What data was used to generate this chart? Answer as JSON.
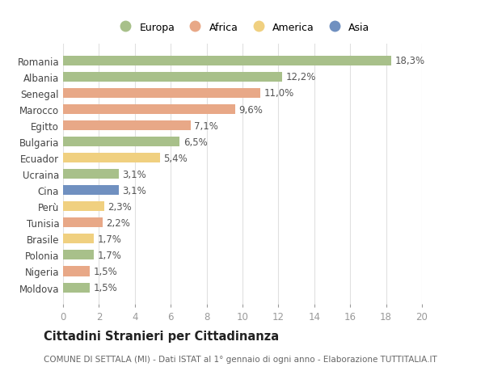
{
  "countries": [
    "Romania",
    "Albania",
    "Senegal",
    "Marocco",
    "Egitto",
    "Bulgaria",
    "Ecuador",
    "Ucraina",
    "Cina",
    "Perù",
    "Tunisia",
    "Brasile",
    "Polonia",
    "Nigeria",
    "Moldova"
  ],
  "values": [
    18.3,
    12.2,
    11.0,
    9.6,
    7.1,
    6.5,
    5.4,
    3.1,
    3.1,
    2.3,
    2.2,
    1.7,
    1.7,
    1.5,
    1.5
  ],
  "labels": [
    "18,3%",
    "12,2%",
    "11,0%",
    "9,6%",
    "7,1%",
    "6,5%",
    "5,4%",
    "3,1%",
    "3,1%",
    "2,3%",
    "2,2%",
    "1,7%",
    "1,7%",
    "1,5%",
    "1,5%"
  ],
  "continents": [
    "Europa",
    "Europa",
    "Africa",
    "Africa",
    "Africa",
    "Europa",
    "America",
    "Europa",
    "Asia",
    "America",
    "Africa",
    "America",
    "Europa",
    "Africa",
    "Europa"
  ],
  "continent_colors": {
    "Europa": "#a8c08a",
    "Africa": "#e8a887",
    "America": "#f0d080",
    "Asia": "#7090c0"
  },
  "legend_order": [
    "Europa",
    "Africa",
    "America",
    "Asia"
  ],
  "title": "Cittadini Stranieri per Cittadinanza",
  "subtitle": "COMUNE DI SETTALA (MI) - Dati ISTAT al 1° gennaio di ogni anno - Elaborazione TUTTITALIA.IT",
  "xlim": [
    0,
    20
  ],
  "xticks": [
    0,
    2,
    4,
    6,
    8,
    10,
    12,
    14,
    16,
    18,
    20
  ],
  "bg_color": "#ffffff",
  "grid_color": "#e0e0e0",
  "bar_height": 0.6,
  "label_fontsize": 8.5,
  "tick_fontsize": 8.5,
  "title_fontsize": 10.5,
  "subtitle_fontsize": 7.5
}
